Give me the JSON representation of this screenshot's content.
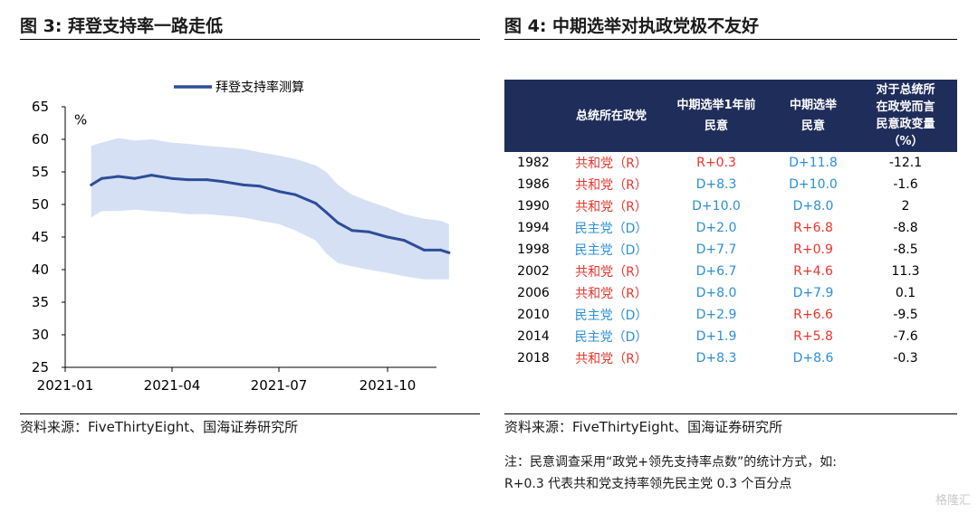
{
  "left": {
    "title": "图 3:  拜登支持率一路走低",
    "source": "资料来源：FiveThirtyEight、国海证券研究所"
  },
  "right": {
    "title": "图 4:  中期选举对执政党极不友好",
    "source": "资料来源：FiveThirtyEight、国海证券研究所",
    "note_line1": "注：民意调查采用“政党+领先支持率点数”的统计方式，如:",
    "note_line2": "R+0.3 代表共和党支持率领先民主党 0.3 个百分点"
  },
  "chart_data": [
    {
      "type": "line",
      "title": "",
      "ylabel": "%",
      "ylim": [
        25,
        65
      ],
      "yticks": [
        "25",
        "30",
        "35",
        "40",
        "45",
        "50",
        "55",
        "60",
        "65"
      ],
      "xticks": [
        "2021-01",
        "2021-04",
        "2021-07",
        "2021-10"
      ],
      "grid": false,
      "legend": "top-center",
      "series": [
        {
          "name": "拜登支持率测算",
          "x": [
            "2021-01-23",
            "2021-02-01",
            "2021-02-15",
            "2021-03-01",
            "2021-03-15",
            "2021-04-01",
            "2021-04-15",
            "2021-05-01",
            "2021-05-15",
            "2021-06-01",
            "2021-06-15",
            "2021-07-01",
            "2021-07-15",
            "2021-08-01",
            "2021-08-10",
            "2021-08-20",
            "2021-09-01",
            "2021-09-15",
            "2021-10-01",
            "2021-10-15",
            "2021-11-01",
            "2021-11-15",
            "2021-11-22"
          ],
          "values": [
            53.0,
            54.0,
            54.3,
            54.0,
            54.5,
            54.0,
            53.8,
            53.8,
            53.5,
            53.0,
            52.8,
            52.0,
            51.5,
            50.2,
            48.8,
            47.2,
            46.0,
            45.8,
            45.0,
            44.5,
            43.0,
            43.0,
            42.6
          ],
          "upper": [
            59.0,
            59.5,
            60.2,
            59.8,
            60.0,
            59.5,
            59.3,
            59.0,
            58.8,
            58.5,
            58.0,
            57.5,
            57.0,
            56.0,
            55.0,
            53.0,
            51.5,
            50.5,
            49.5,
            48.5,
            47.8,
            47.5,
            47.0
          ],
          "lower": [
            48.0,
            49.0,
            49.0,
            49.2,
            49.0,
            48.8,
            48.5,
            48.5,
            48.3,
            48.0,
            47.5,
            47.0,
            46.0,
            44.5,
            42.5,
            41.0,
            40.5,
            40.0,
            39.5,
            39.0,
            38.5,
            38.5,
            38.5
          ]
        }
      ]
    },
    {
      "type": "table",
      "columns": [
        "",
        "总统所在政党",
        "中期选举1年前民意",
        "中期选举民意",
        "对于总统所在政党而言民意政变量（%）"
      ],
      "rows": [
        [
          "1982",
          "共和党（R）",
          "R+0.3",
          "D+11.8",
          "-12.1"
        ],
        [
          "1986",
          "共和党（R）",
          "D+8.3",
          "D+10.0",
          "-1.6"
        ],
        [
          "1990",
          "共和党（R）",
          "D+10.0",
          "D+8.0",
          "2"
        ],
        [
          "1994",
          "民主党（D）",
          "D+2.0",
          "R+6.8",
          "-8.8"
        ],
        [
          "1998",
          "民主党（D）",
          "D+7.7",
          "R+0.9",
          "-8.5"
        ],
        [
          "2002",
          "共和党（R）",
          "D+6.7",
          "R+4.6",
          "11.3"
        ],
        [
          "2006",
          "共和党（R）",
          "D+8.0",
          "D+7.9",
          "0.1"
        ],
        [
          "2010",
          "民主党（D）",
          "D+2.9",
          "R+6.6",
          "-9.5"
        ],
        [
          "2014",
          "民主党（D）",
          "D+1.9",
          "R+5.8",
          "-7.6"
        ],
        [
          "2018",
          "共和党（R）",
          "D+8.3",
          "D+8.6",
          "-0.3"
        ]
      ]
    }
  ],
  "colors": {
    "line": "#2d4d9a",
    "band": "#d6e0f4",
    "header_bg": "#1f2d5a",
    "republican": "#e8342b",
    "democrat": "#2b8fd6"
  },
  "table_header": {
    "c1": "总统所在政党",
    "c2a": "中期选举1年前",
    "c2b": "民意",
    "c3a": "中期选举",
    "c3b": "民意",
    "c4a": "对于总统所",
    "c4b": "在政党而言",
    "c4c": "民意政变量",
    "c4d": "（%）"
  },
  "watermark": "格隆汇"
}
